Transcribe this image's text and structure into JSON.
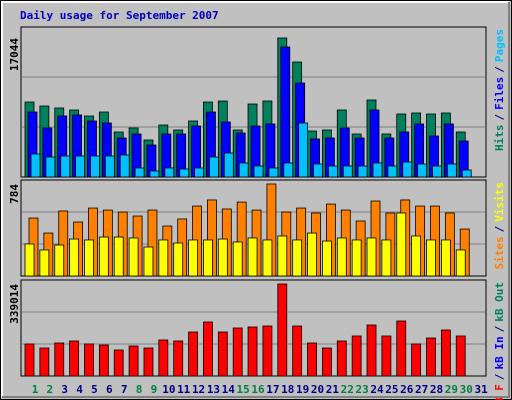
{
  "chart_data": [
    {
      "type": "bar",
      "title": "Daily usage for September 2007",
      "title_color": "#0000c0",
      "ylim": [
        0,
        17044
      ],
      "yticks": [
        17044
      ],
      "legend_separator": "/",
      "series": [
        {
          "name": "Hits",
          "color": "#00805c",
          "values": [
            9196,
            8706,
            8461,
            8215,
            7480,
            7970,
            5518,
            6008,
            4537,
            6376,
            5763,
            6867,
            9196,
            9319,
            5763,
            8951,
            9319,
            17044,
            14101,
            5640,
            5763,
            8215,
            5273,
            9442,
            5273,
            7725,
            7848,
            7725,
            7848,
            5518,
            null
          ]
        },
        {
          "name": "Files",
          "color": "#0000ff",
          "values": [
            7970,
            6008,
            7480,
            7602,
            6867,
            6621,
            4782,
            5272,
            3924,
            5272,
            5272,
            6253,
            7970,
            6744,
            5395,
            6253,
            6499,
            15941,
            11526,
            4660,
            4782,
            6008,
            4782,
            8215,
            4782,
            5518,
            6499,
            5027,
            6499,
            4414,
            null
          ]
        },
        {
          "name": "Pages",
          "color": "#00c0ff",
          "values": [
            2820,
            2452,
            2575,
            2575,
            2575,
            2575,
            2698,
            1104,
            736,
            1104,
            981,
            1104,
            2452,
            2943,
            1717,
            1349,
            1104,
            1717,
            6621,
            1594,
            1349,
            1349,
            1349,
            1717,
            1349,
            1839,
            1594,
            1349,
            1594,
            858,
            null
          ]
        }
      ]
    },
    {
      "type": "bar",
      "ylim": [
        0,
        784
      ],
      "yticks": [
        784
      ],
      "legend_separator": "/",
      "series": [
        {
          "name": "Sites",
          "color": "#ff8000",
          "values": [
            494,
            366,
            554,
            460,
            579,
            562,
            545,
            511,
            562,
            426,
            486,
            596,
            648,
            571,
            630,
            562,
            784,
            545,
            579,
            537,
            613,
            562,
            469,
            639,
            537,
            648,
            596,
            596,
            537,
            400,
            null
          ]
        },
        {
          "name": "Visits",
          "color": "#ffff00",
          "values": [
            273,
            222,
            264,
            315,
            307,
            332,
            332,
            324,
            247,
            307,
            281,
            307,
            307,
            315,
            290,
            324,
            307,
            341,
            307,
            366,
            298,
            324,
            307,
            324,
            307,
            537,
            341,
            307,
            307,
            222,
            null
          ]
        }
      ]
    },
    {
      "type": "bar",
      "ylim": [
        0,
        339014
      ],
      "yticks": [
        339014
      ],
      "legend_separator": "/",
      "categories": [
        "1",
        "2",
        "3",
        "4",
        "5",
        "6",
        "7",
        "8",
        "9",
        "10",
        "11",
        "12",
        "13",
        "14",
        "15",
        "16",
        "17",
        "18",
        "19",
        "20",
        "21",
        "22",
        "23",
        "24",
        "25",
        "26",
        "27",
        "28",
        "29",
        "30",
        "31"
      ],
      "weekends": [
        0,
        1,
        7,
        8,
        14,
        15,
        21,
        22,
        28,
        29
      ],
      "weekend_label_color": "#008040",
      "weekday_label_color": "#000080",
      "series": [
        {
          "name": "kB F",
          "color": "#ff0000",
          "values": [
            117920,
            103180,
            121605,
            128975,
            117920,
            114235,
            95810,
            110550,
            103180,
            132660,
            128975,
            162140,
            198990,
            162140,
            176880,
            180565,
            184250,
            339014,
            184250,
            121605,
            103180,
            128975,
            147400,
            187935,
            147400,
            202675,
            117920,
            140030,
            169510,
            147400,
            null
          ]
        },
        {
          "name": "kB In",
          "color": "#0000ff",
          "values": [
            0,
            0,
            0,
            0,
            0,
            0,
            0,
            0,
            0,
            0,
            0,
            0,
            0,
            0,
            0,
            0,
            0,
            0,
            0,
            0,
            0,
            0,
            0,
            0,
            0,
            0,
            0,
            0,
            0,
            0,
            null
          ]
        },
        {
          "name": "kB Out",
          "color": "#00805c",
          "values": [
            0,
            0,
            0,
            0,
            0,
            0,
            0,
            0,
            0,
            0,
            0,
            0,
            0,
            0,
            0,
            0,
            0,
            0,
            0,
            0,
            0,
            0,
            0,
            0,
            0,
            0,
            0,
            0,
            0,
            0,
            null
          ]
        }
      ]
    }
  ]
}
